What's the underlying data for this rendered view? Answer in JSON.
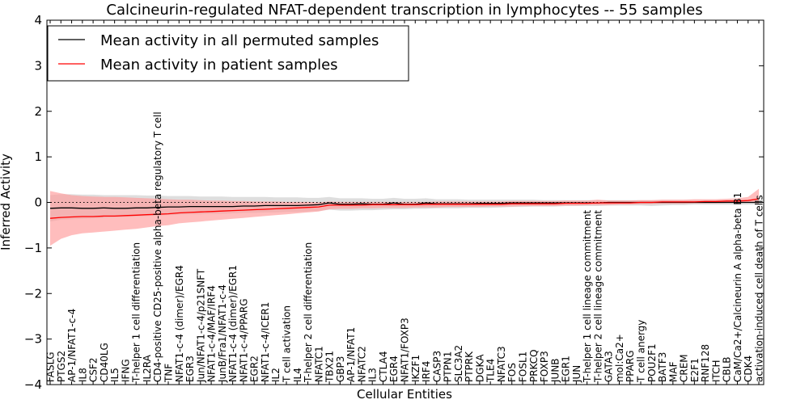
{
  "chart_data": {
    "type": "line",
    "title": "Calcineurin-regulated NFAT-dependent transcription in lymphocytes -- 55 samples",
    "xlabel": "Cellular Entities",
    "ylabel": "Inferred Activity",
    "ylim": [
      -4,
      4
    ],
    "yticks": [
      -4,
      -3,
      -2,
      -1,
      0,
      1,
      2,
      3,
      4
    ],
    "ytick_labels": [
      "−4",
      "−3",
      "−2",
      "−1",
      "0",
      "1",
      "2",
      "3",
      "4"
    ],
    "legend": {
      "placement": "top-left",
      "entries": [
        "Mean activity in all permuted samples",
        "Mean activity in patient samples"
      ]
    },
    "reference_line": {
      "y": 0,
      "style": "dotted"
    },
    "categories": [
      "FASLG",
      "PTGS2",
      "AP-1/NFAT1-c-4",
      "IL8",
      "CSF2",
      "CD40LG",
      "IL5",
      "IFNG",
      "T-helper 1 cell differentiation",
      "IL2RA",
      "CD4-positive CD25-positive alpha-beta regulatory T cell",
      "TNF",
      "NFAT1-c-4 (dimer)/EGR4",
      "EGR3",
      "Jun/NFAT1-c-4/p21SNFT",
      "NFAT1-c-4/MAF/IRF4",
      "JunB/Fra1/NFAT1-c-4",
      "NFAT1-c-4 (dimer)/EGR1",
      "NFAT1-c-4/PPARG",
      "EGR2",
      "NFAT1-c-4/ICER1",
      "IL2",
      "T cell activation",
      "IL4",
      "T-helper 2 cell differentiation",
      "NFATC1",
      "TBX21",
      "GBP3",
      "AP-1/NFAT1",
      "NFATC2",
      "IL3",
      "CTLA4",
      "EGR4",
      "NFAT1/FOXP3",
      "IKZF1",
      "IRF4",
      "CASP3",
      "PTPN1",
      "SLC3A2",
      "PTPRK",
      "DGKA",
      "TLE4",
      "NFATC3",
      "FOS",
      "FOSL1",
      "PRKCQ",
      "FOXP3",
      "JUNB",
      "EGR1",
      "JUN",
      "T-helper 1 cell lineage commitment",
      "T-helper 2 cell lineage commitment",
      "GATA3",
      "mol:Ca2+",
      "PPARG",
      "T cell anergy",
      "POU2F1",
      "BATF3",
      "MAF",
      "CREM",
      "E2F1",
      "RNF128",
      "ITCH",
      "CBLB",
      "CaM/Ca2+/Calcineurin A alpha-beta B1",
      "CDK4",
      "activation-induced cell death of T cells"
    ],
    "series": [
      {
        "name": "Mean activity in all permuted samples",
        "color": "#000000",
        "band_color": "#c8c8c8",
        "values": [
          -0.13,
          -0.12,
          -0.12,
          -0.13,
          -0.13,
          -0.12,
          -0.13,
          -0.13,
          -0.12,
          -0.12,
          -0.11,
          -0.1,
          -0.1,
          -0.09,
          -0.09,
          -0.09,
          -0.09,
          -0.09,
          -0.08,
          -0.08,
          -0.07,
          -0.07,
          -0.07,
          -0.07,
          -0.06,
          -0.05,
          -0.01,
          -0.04,
          -0.04,
          -0.03,
          -0.04,
          -0.04,
          -0.01,
          -0.04,
          -0.04,
          -0.01,
          -0.03,
          -0.03,
          -0.03,
          -0.03,
          -0.02,
          -0.02,
          -0.02,
          -0.01,
          -0.01,
          -0.01,
          -0.01,
          -0.01,
          -0.01,
          -0.01,
          -0.01,
          -0.01,
          0.0,
          0.0,
          0.0,
          0.0,
          0.0,
          0.0,
          0.0,
          0.0,
          0.0,
          0.0,
          0.0,
          0.0,
          0.0,
          0.0,
          0.0
        ],
        "lower": [
          -0.42,
          -0.38,
          -0.37,
          -0.36,
          -0.35,
          -0.34,
          -0.33,
          -0.32,
          -0.31,
          -0.3,
          -0.29,
          -0.28,
          -0.27,
          -0.26,
          -0.26,
          -0.25,
          -0.25,
          -0.24,
          -0.23,
          -0.23,
          -0.22,
          -0.22,
          -0.21,
          -0.21,
          -0.2,
          -0.19,
          -0.16,
          -0.18,
          -0.18,
          -0.17,
          -0.17,
          -0.16,
          -0.15,
          -0.15,
          -0.14,
          -0.14,
          -0.13,
          -0.13,
          -0.13,
          -0.12,
          -0.12,
          -0.12,
          -0.11,
          -0.1,
          -0.1,
          -0.09,
          -0.09,
          -0.09,
          -0.08,
          -0.08,
          -0.08,
          -0.08,
          -0.07,
          -0.07,
          -0.07,
          -0.07,
          -0.08,
          -0.07,
          -0.06,
          -0.06,
          -0.05,
          -0.05,
          -0.05,
          -0.05,
          -0.05,
          -0.05,
          -0.04
        ],
        "upper": [
          0.16,
          0.18,
          0.18,
          0.17,
          0.17,
          0.16,
          0.16,
          0.16,
          0.16,
          0.15,
          0.15,
          0.14,
          0.14,
          0.14,
          0.13,
          0.13,
          0.13,
          0.12,
          0.12,
          0.12,
          0.12,
          0.11,
          0.11,
          0.11,
          0.1,
          0.1,
          0.12,
          0.09,
          0.09,
          0.09,
          0.08,
          0.08,
          0.1,
          0.08,
          0.08,
          0.09,
          0.07,
          0.07,
          0.07,
          0.06,
          0.06,
          0.06,
          0.06,
          0.06,
          0.06,
          0.06,
          0.05,
          0.05,
          0.05,
          0.05,
          0.05,
          0.05,
          0.05,
          0.05,
          0.05,
          0.05,
          0.05,
          0.05,
          0.05,
          0.05,
          0.05,
          0.05,
          0.05,
          0.05,
          0.05,
          0.05,
          0.05
        ]
      },
      {
        "name": "Mean activity in patient samples",
        "color": "#ff0000",
        "band_color": "#ff9a9a",
        "values": [
          -0.35,
          -0.33,
          -0.32,
          -0.31,
          -0.31,
          -0.3,
          -0.3,
          -0.29,
          -0.28,
          -0.27,
          -0.26,
          -0.25,
          -0.23,
          -0.22,
          -0.21,
          -0.2,
          -0.19,
          -0.18,
          -0.17,
          -0.16,
          -0.15,
          -0.14,
          -0.13,
          -0.12,
          -0.11,
          -0.1,
          -0.06,
          -0.06,
          -0.06,
          -0.06,
          -0.05,
          -0.05,
          -0.05,
          -0.05,
          -0.05,
          -0.04,
          -0.04,
          -0.04,
          -0.04,
          -0.04,
          -0.04,
          -0.04,
          -0.04,
          -0.03,
          -0.03,
          -0.03,
          -0.03,
          -0.03,
          -0.02,
          -0.02,
          -0.02,
          -0.01,
          -0.01,
          -0.01,
          -0.01,
          0.0,
          0.0,
          0.01,
          0.01,
          0.01,
          0.01,
          0.02,
          0.02,
          0.03,
          0.03,
          0.04,
          0.08
        ],
        "lower": [
          -0.95,
          -0.8,
          -0.72,
          -0.68,
          -0.66,
          -0.64,
          -0.62,
          -0.6,
          -0.58,
          -0.55,
          -0.52,
          -0.5,
          -0.46,
          -0.44,
          -0.42,
          -0.4,
          -0.38,
          -0.36,
          -0.34,
          -0.32,
          -0.3,
          -0.28,
          -0.26,
          -0.24,
          -0.22,
          -0.2,
          -0.15,
          -0.14,
          -0.14,
          -0.13,
          -0.13,
          -0.12,
          -0.12,
          -0.12,
          -0.11,
          -0.11,
          -0.11,
          -0.1,
          -0.1,
          -0.1,
          -0.1,
          -0.09,
          -0.09,
          -0.09,
          -0.08,
          -0.08,
          -0.08,
          -0.08,
          -0.07,
          -0.07,
          -0.06,
          -0.06,
          -0.06,
          -0.05,
          -0.05,
          -0.04,
          -0.04,
          -0.03,
          -0.03,
          -0.03,
          -0.02,
          -0.02,
          -0.02,
          -0.01,
          0.0,
          0.0,
          -0.02
        ],
        "upper": [
          0.25,
          0.2,
          0.16,
          0.14,
          0.13,
          0.12,
          0.12,
          0.11,
          0.1,
          0.09,
          0.08,
          0.07,
          0.06,
          0.06,
          0.05,
          0.04,
          0.04,
          0.03,
          0.03,
          0.02,
          0.02,
          0.02,
          0.01,
          0.01,
          0.01,
          0.0,
          0.02,
          0.01,
          0.01,
          0.01,
          0.01,
          0.01,
          0.01,
          0.01,
          0.01,
          0.01,
          0.02,
          0.02,
          0.02,
          0.02,
          0.02,
          0.02,
          0.02,
          0.03,
          0.03,
          0.03,
          0.03,
          0.03,
          0.04,
          0.04,
          0.04,
          0.06,
          0.04,
          0.04,
          0.04,
          0.05,
          0.05,
          0.06,
          0.06,
          0.06,
          0.07,
          0.07,
          0.07,
          0.08,
          0.09,
          0.12,
          0.3
        ]
      }
    ]
  }
}
